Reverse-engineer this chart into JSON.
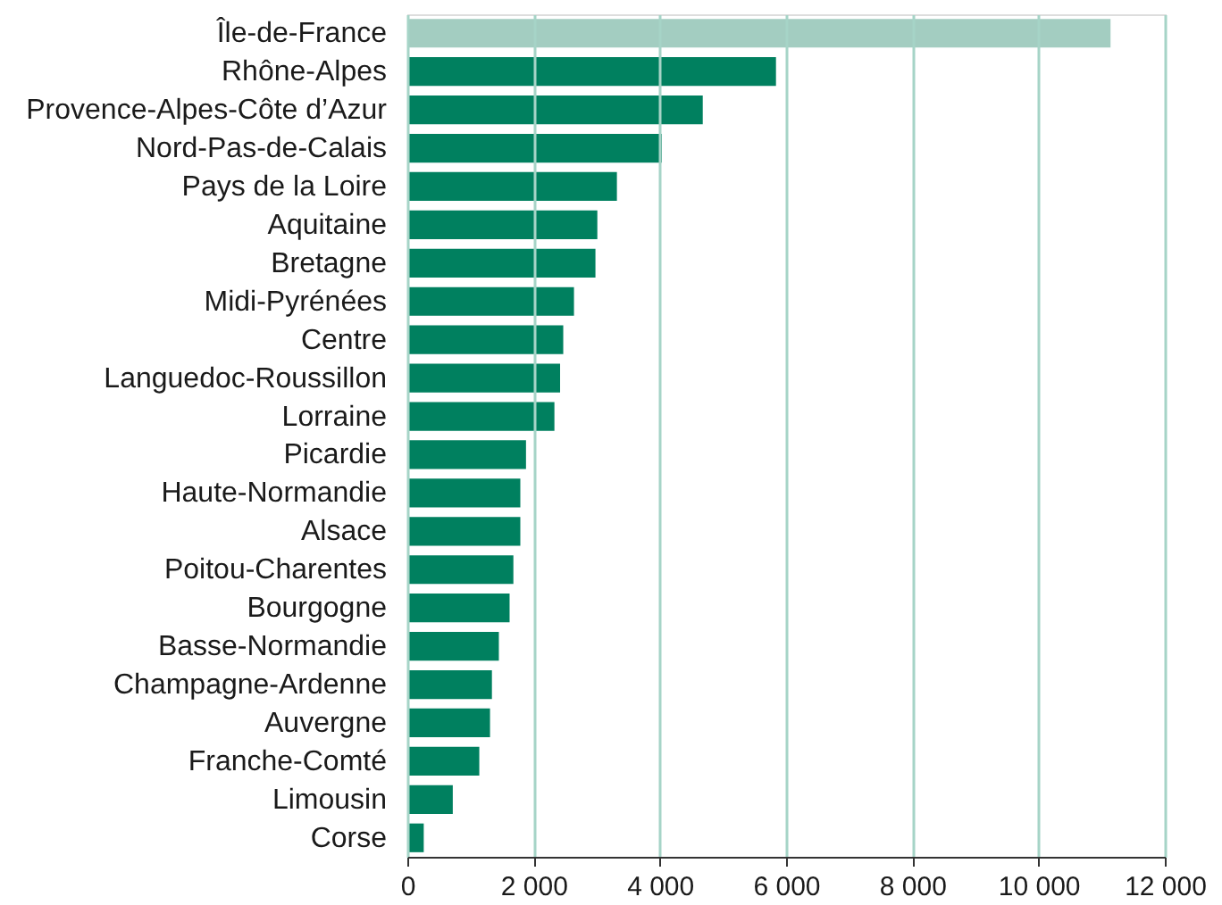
{
  "chart_data": {
    "type": "bar",
    "orientation": "horizontal",
    "categories": [
      "Île-de-France",
      "Rhône-Alpes",
      "Provence-Alpes-Côte d’Azur",
      "Nord-Pas-de-Calais",
      "Pays de la Loire",
      "Aquitaine",
      "Bretagne",
      "Midi-Pyrénées",
      "Centre",
      "Languedoc-Roussillon",
      "Lorraine",
      "Picardie",
      "Haute-Normandie",
      "Alsace",
      "Poitou-Charentes",
      "Bourgogne",
      "Basse-Normandie",
      "Champagne-Ardenne",
      "Auvergne",
      "Franche-Comté",
      "Limousin",
      "Corse"
    ],
    "values": [
      11140,
      5840,
      4680,
      4030,
      3320,
      3010,
      2980,
      2640,
      2470,
      2420,
      2330,
      1880,
      1790,
      1790,
      1680,
      1620,
      1450,
      1340,
      1310,
      1140,
      720,
      260
    ],
    "colors": [
      "#a3cdc1",
      "#00805f",
      "#00805f",
      "#00805f",
      "#00805f",
      "#00805f",
      "#00805f",
      "#00805f",
      "#00805f",
      "#00805f",
      "#00805f",
      "#00805f",
      "#00805f",
      "#00805f",
      "#00805f",
      "#00805f",
      "#00805f",
      "#00805f",
      "#00805f",
      "#00805f",
      "#00805f",
      "#00805f"
    ],
    "xlim": [
      0,
      12000
    ],
    "xticks": [
      0,
      {
        "value": 2000,
        "label": "2 000"
      },
      {
        "value": 4000,
        "label": "4 000"
      },
      {
        "value": 6000,
        "label": "6 000"
      },
      {
        "value": 8000,
        "label": "8 000"
      },
      {
        "value": 10000,
        "label": "10 000"
      },
      {
        "value": 12000,
        "label": "12 000"
      }
    ],
    "grid": "x"
  }
}
